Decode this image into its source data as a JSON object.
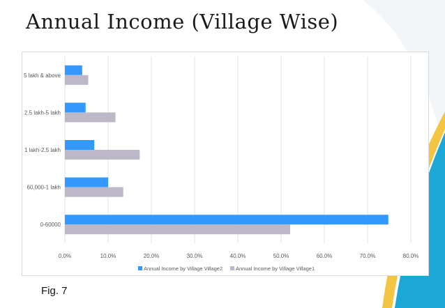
{
  "slide": {
    "title": "Annual Income (Village Wise)",
    "figure_label": "Fig. 7"
  },
  "colors": {
    "accent_teal": "#1ba8d6",
    "accent_gold": "#f4c542",
    "series_village2": "#3399ff",
    "series_village1": "#bcb8c8",
    "grid": "#e0e0e0",
    "tick_text": "#595959"
  },
  "chart_data": {
    "type": "bar",
    "orientation": "horizontal",
    "title": "",
    "xlabel": "",
    "ylabel": "",
    "categories": [
      "5 lakh & above",
      "2.5 lakh-5 lakh",
      "1 lakh-2.5 lakh",
      "60,000-1 lakh",
      "0-60000"
    ],
    "series": [
      {
        "name": "Annual Income by Village Village2",
        "values": [
          4.0,
          4.8,
          6.8,
          10.0,
          74.8
        ]
      },
      {
        "name": "Annual Income by Village Village1",
        "values": [
          5.4,
          11.7,
          17.3,
          13.5,
          52.1
        ]
      }
    ],
    "xlim": [
      0,
      80
    ],
    "x_ticks": [
      "0.0%",
      "10.0%",
      "20.0%",
      "30.0%",
      "40.0%",
      "50.0%",
      "60.0%",
      "70.0%",
      "80.0%"
    ],
    "grid": true,
    "legend_position": "bottom"
  }
}
